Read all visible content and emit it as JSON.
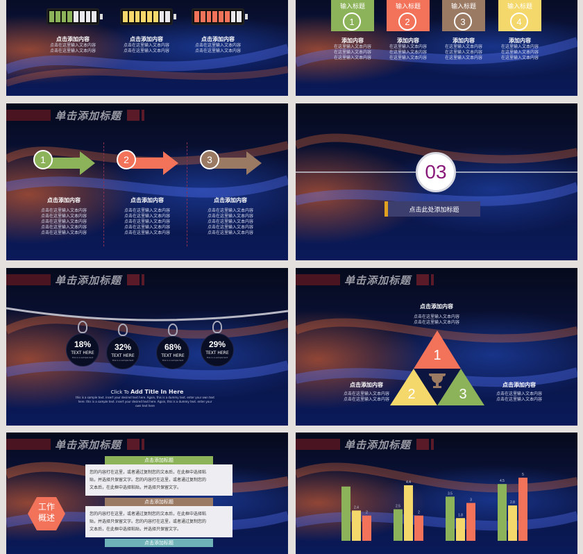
{
  "colors": {
    "green": "#8db35a",
    "orange": "#f2735a",
    "brown": "#9b7a64",
    "yellow": "#f5d86b",
    "dark_red": "#4a1420"
  },
  "header_title": "单击添加标题",
  "slide1": {
    "batteries": [
      {
        "color": "#8db35a",
        "level": 0.5,
        "title": "点击添加内容",
        "lines": [
          "点击在这里输入文本内容",
          "点击在这里输入文本内容"
        ]
      },
      {
        "color": "#f5d86b",
        "level": 0.8,
        "title": "点击添加内容",
        "lines": [
          "点击在这里输入文本内容",
          "点击在这里输入文本内容"
        ]
      },
      {
        "color": "#f2735a",
        "level": 0.75,
        "title": "点击添加内容",
        "lines": [
          "点击在这里输入文本内容",
          "点击在这里输入文本内容"
        ]
      }
    ]
  },
  "slide2": {
    "items": [
      {
        "tag": "输入标题",
        "num": "1",
        "color": "#8db35a",
        "title": "添加内容",
        "lines": [
          "在这里输入文本内容",
          "在这里输入文本内容",
          "在这里输入文本内容"
        ]
      },
      {
        "tag": "输入标题",
        "num": "2",
        "color": "#f2735a",
        "title": "添加内容",
        "lines": [
          "在这里输入文本内容",
          "在这里输入文本内容",
          "在这里输入文本内容"
        ]
      },
      {
        "tag": "输入标题",
        "num": "3",
        "color": "#9b7a64",
        "title": "添加内容",
        "lines": [
          "在这里输入文本内容",
          "在这里输入文本内容",
          "在这里输入文本内容"
        ]
      },
      {
        "tag": "输入标题",
        "num": "4",
        "color": "#f5d86b",
        "title": "添加内容",
        "lines": [
          "在这里输入文本内容",
          "在这里输入文本内容",
          "在这里输入文本内容"
        ]
      }
    ]
  },
  "slide3": {
    "items": [
      {
        "num": "1",
        "color": "#8db35a",
        "title": "点击添加内容",
        "lines": [
          "点击在这里输入文本内容",
          "点击在这里输入文本内容",
          "点击在这里输入文本内容",
          "点击在这里输入文本内容",
          "点击在这里输入文本内容"
        ]
      },
      {
        "num": "2",
        "color": "#f2735a",
        "title": "点击添加内容",
        "lines": [
          "点击在这里输入文本内容",
          "点击在这里输入文本内容",
          "点击在这里输入文本内容",
          "点击在这里输入文本内容",
          "点击在这里输入文本内容"
        ]
      },
      {
        "num": "3",
        "color": "#9b7a64",
        "title": "点击添加内容",
        "lines": [
          "点击在这里输入文本内容",
          "点击在这里输入文本内容",
          "点击在这里输入文本内容",
          "点击在这里输入文本内容",
          "点击在这里输入文本内容"
        ]
      }
    ]
  },
  "slide4": {
    "number": "03",
    "label": "点击此处添加标题"
  },
  "slide5": {
    "tags": [
      {
        "pct": "18%",
        "label": "TEXT HERE",
        "sub": "this is a sample text"
      },
      {
        "pct": "32%",
        "label": "TEXT HERE",
        "sub": "this is a sample text"
      },
      {
        "pct": "68%",
        "label": "TEXT HERE",
        "sub": "this is a sample text"
      },
      {
        "pct": "29%",
        "label": "TEXT HERE",
        "sub": "this is a sample text"
      }
    ],
    "click_to": "Click To",
    "add_title": "Add Title In Here",
    "body": "this is a sample text. insert your desired text here. Again, this is a dummy text. enter your own text here. this is a sample text. insert your desired text here. Again, this is a dummy text. enter your own text here"
  },
  "slide6": {
    "top": {
      "title": "点击添加内容",
      "lines": [
        "点击在这里输入文本内容",
        "点击在这里输入文本内容"
      ]
    },
    "left": {
      "title": "点击添加内容",
      "lines": [
        "点击在这里输入文本内容",
        "点击在这里输入文本内容"
      ]
    },
    "right": {
      "title": "点击添加内容",
      "lines": [
        "点击在这里输入文本内容",
        "点击在这里输入文本内容"
      ]
    },
    "nums": [
      "1",
      "2",
      "3"
    ]
  },
  "slide7": {
    "hex_label_1": "工作",
    "hex_label_2": "概述",
    "blocks": [
      {
        "heading": "点击添加标题",
        "color": "#8db35a",
        "lines": [
          "您的内容打在这里，或者通过复制您的文本后，在此框中选择粘",
          "贴，并选择只保留文字。您的内容打在这里，或者通过复制您的",
          "文本后，在此框中选择粘贴，并选择只保留文字。"
        ]
      },
      {
        "heading": "点击添加标题",
        "color": "#9b7a64",
        "lines": [
          "您的内容打在这里，或者通过复制您的文本后，在此框中选择粘",
          "贴，并选择只保留文字。您的内容打在这里，或者通过复制您的",
          "文本后，在此框中选择粘贴，并选择只保留文字。"
        ]
      },
      {
        "heading": "点击添加标题",
        "color": "#6fb3b8",
        "lines": []
      }
    ]
  },
  "chart_data": {
    "type": "bar",
    "series": [
      {
        "color": "#8db35a",
        "values": [
          4.3,
          2.5,
          3.5,
          4.5
        ]
      },
      {
        "color": "#f5d86b",
        "values": [
          2.4,
          4.4,
          1.8,
          2.8
        ]
      },
      {
        "color": "#f2735a",
        "values": [
          2.0,
          2.0,
          3.0,
          5.0
        ]
      }
    ],
    "labels": [
      [
        "",
        "2.4",
        "2"
      ],
      [
        "2.5",
        "4.4",
        "2"
      ],
      [
        "3.5",
        "1.8",
        "3"
      ],
      [
        "4.5",
        "2.8",
        "5"
      ]
    ],
    "ylim": [
      0,
      5.5
    ]
  }
}
